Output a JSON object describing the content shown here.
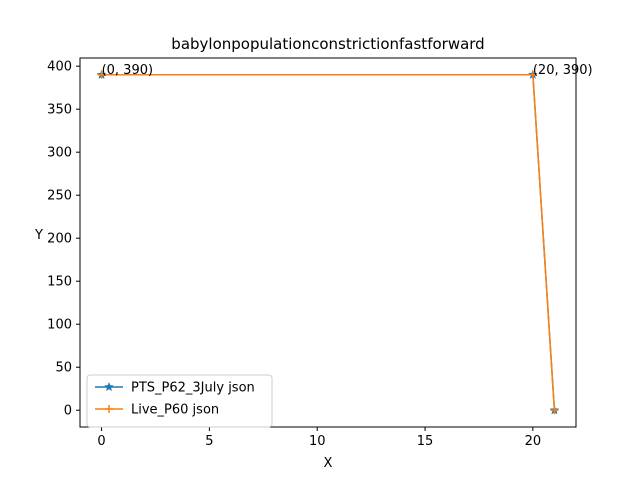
{
  "chart_data": {
    "type": "line",
    "title": "babylonpopulationconstrictionfastforward",
    "xlabel": "X",
    "ylabel": "Y",
    "xlim": [
      -1,
      22
    ],
    "ylim": [
      -19.5,
      409.5
    ],
    "xticks": [
      0,
      5,
      10,
      15,
      20
    ],
    "yticks": [
      0,
      50,
      100,
      150,
      200,
      250,
      300,
      350,
      400
    ],
    "grid": false,
    "legend_position": "lower-left",
    "series": [
      {
        "name": "PTS_P62_3July json",
        "color": "#1f77b4",
        "marker": "star",
        "x": [
          0,
          20,
          21
        ],
        "y": [
          390,
          390,
          0
        ]
      },
      {
        "name": "Live_P60 json",
        "color": "#ff7f0e",
        "marker": "plus",
        "x": [
          0,
          20,
          21
        ],
        "y": [
          390,
          390,
          0
        ]
      }
    ],
    "annotations": [
      {
        "text": "(0, 390)",
        "x": 0,
        "y": 390
      },
      {
        "text": "(20, 390)",
        "x": 20,
        "y": 390
      }
    ]
  }
}
